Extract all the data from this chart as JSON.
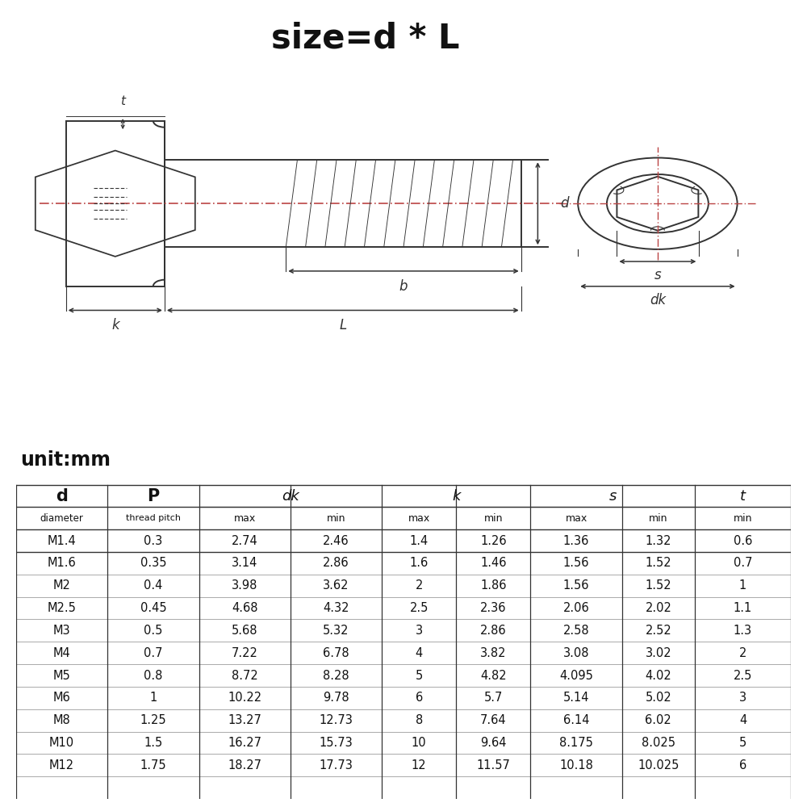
{
  "title": "size=d * L",
  "unit_label": "unit:mm",
  "bg_color": "#ffffff",
  "table_data": [
    [
      "M1.4",
      "0.3",
      "2.74",
      "2.46",
      "1.4",
      "1.26",
      "1.36",
      "1.32",
      "0.6"
    ],
    [
      "M1.6",
      "0.35",
      "3.14",
      "2.86",
      "1.6",
      "1.46",
      "1.56",
      "1.52",
      "0.7"
    ],
    [
      "M2",
      "0.4",
      "3.98",
      "3.62",
      "2",
      "1.86",
      "1.56",
      "1.52",
      "1"
    ],
    [
      "M2.5",
      "0.45",
      "4.68",
      "4.32",
      "2.5",
      "2.36",
      "2.06",
      "2.02",
      "1.1"
    ],
    [
      "M3",
      "0.5",
      "5.68",
      "5.32",
      "3",
      "2.86",
      "2.58",
      "2.52",
      "1.3"
    ],
    [
      "M4",
      "0.7",
      "7.22",
      "6.78",
      "4",
      "3.82",
      "3.08",
      "3.02",
      "2"
    ],
    [
      "M5",
      "0.8",
      "8.72",
      "8.28",
      "5",
      "4.82",
      "4.095",
      "4.02",
      "2.5"
    ],
    [
      "M6",
      "1",
      "10.22",
      "9.78",
      "6",
      "5.7",
      "5.14",
      "5.02",
      "3"
    ],
    [
      "M8",
      "1.25",
      "13.27",
      "12.73",
      "8",
      "7.64",
      "6.14",
      "6.02",
      "4"
    ],
    [
      "M10",
      "1.5",
      "16.27",
      "15.73",
      "10",
      "9.64",
      "8.175",
      "8.025",
      "5"
    ],
    [
      "M12",
      "1.75",
      "18.27",
      "17.73",
      "12",
      "11.57",
      "10.18",
      "10.025",
      "6"
    ]
  ],
  "line_color": "#333333",
  "dash_color": "#bb4444",
  "draw_bg": "#f8f8f8"
}
